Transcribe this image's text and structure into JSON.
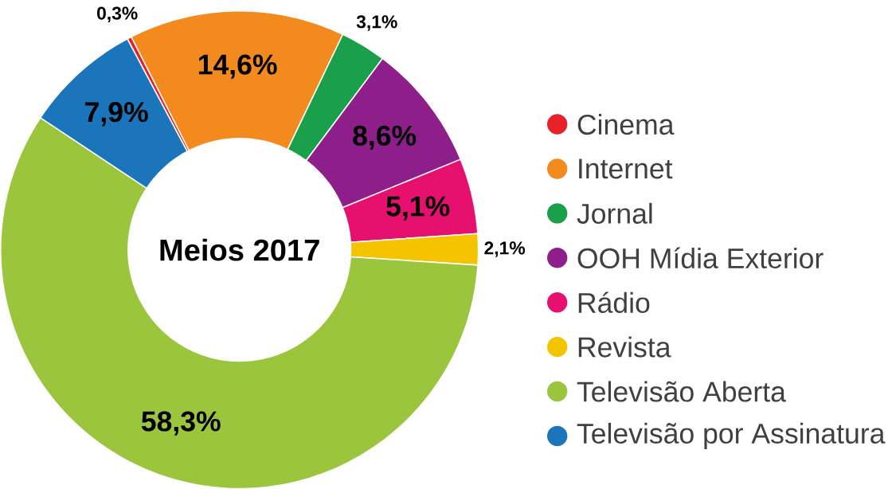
{
  "chart_data": {
    "type": "donut",
    "title": "Meios 2017",
    "categories": [
      "Cinema",
      "Internet",
      "Jornal",
      "OOH Mídia Exterior",
      "Rádio",
      "Revista",
      "Televisão Aberta",
      "Televisão por Assinatura"
    ],
    "values": [
      0.3,
      14.6,
      3.1,
      8.6,
      5.1,
      2.1,
      58.3,
      7.9
    ],
    "value_labels": [
      "0,3%",
      "14,6%",
      "3,1%",
      "8,6%",
      "5,1%",
      "2,1%",
      "58,3%",
      "7,9%"
    ],
    "colors": [
      "#e8202a",
      "#f28a1e",
      "#1aa04a",
      "#8e1f8a",
      "#e6106e",
      "#f5c400",
      "#9bc53d",
      "#1b75bb"
    ],
    "legend": "right"
  }
}
